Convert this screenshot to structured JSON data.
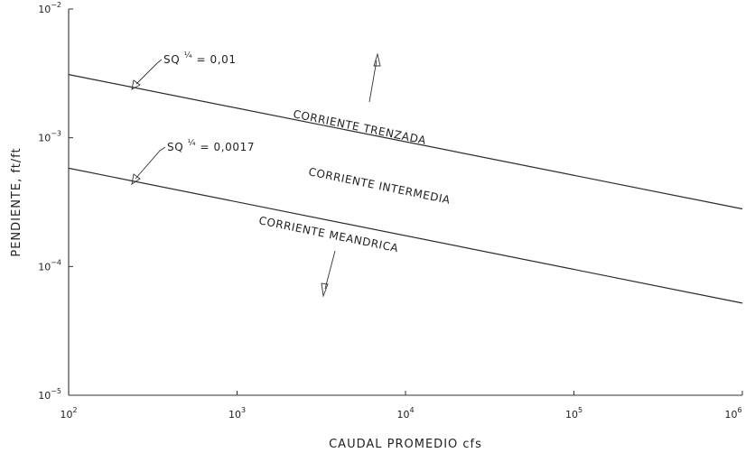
{
  "chart_data": {
    "type": "line",
    "x_scale": "log",
    "y_scale": "log",
    "xlim": [
      100,
      1000000
    ],
    "ylim": [
      1e-05,
      0.01
    ],
    "xlabel": "CAUDAL PROMEDIO cfs",
    "ylabel": "PENDIENTE, ft/ft",
    "x_ticks": [
      {
        "value": 100,
        "base": "10",
        "exp": "2"
      },
      {
        "value": 1000,
        "base": "10",
        "exp": "3"
      },
      {
        "value": 10000,
        "base": "10",
        "exp": "4"
      },
      {
        "value": 100000,
        "base": "10",
        "exp": "5"
      },
      {
        "value": 1000000,
        "base": "10",
        "exp": "6"
      }
    ],
    "y_ticks": [
      {
        "value": 0.01,
        "base": "10",
        "exp": "−2"
      },
      {
        "value": 0.001,
        "base": "10",
        "exp": "−3"
      },
      {
        "value": 0.0001,
        "base": "10",
        "exp": "−4"
      },
      {
        "value": 1e-05,
        "base": "10",
        "exp": "−5"
      }
    ],
    "grid": false,
    "series": [
      {
        "equation": {
          "prefix": "SQ",
          "sup": "¼",
          "suffix": " = 0,01"
        },
        "x": [
          100,
          1000000
        ],
        "y": [
          0.0031,
          0.00028
        ]
      },
      {
        "equation": {
          "prefix": "SQ",
          "sup": "¼",
          "suffix": " = 0,0017"
        },
        "x": [
          100,
          1000000
        ],
        "y": [
          0.00058,
          5.2e-05
        ]
      }
    ],
    "annotations": [
      {
        "text": "CORRIENTE TRENZADA"
      },
      {
        "text": "CORRIENTE INTERMEDIA"
      },
      {
        "text": "CORRIENTE MEANDRICA"
      }
    ]
  }
}
